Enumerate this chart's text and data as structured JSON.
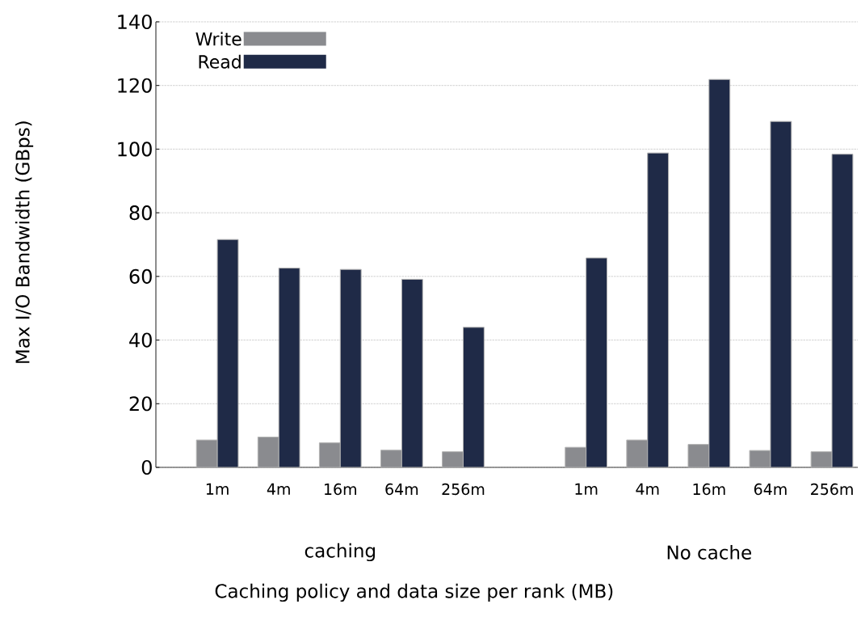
{
  "chart_data": {
    "type": "bar",
    "xlabel": "Caching policy and data size per rank (MB)",
    "ylabel": "Max I/O Bandwidth (GBps)",
    "categories": [
      "1m",
      "4m",
      "16m",
      "64m",
      "256m",
      null,
      "1m",
      "4m",
      "16m",
      "64m",
      "256m"
    ],
    "series": [
      {
        "name": "Write",
        "color": "#8a8b8f",
        "values": [
          8.6,
          9.5,
          7.7,
          5.4,
          4.9,
          null,
          6.3,
          8.6,
          7.2,
          5.3,
          4.9
        ]
      },
      {
        "name": "Read",
        "color": "#1f2a47",
        "values": [
          71.6,
          62.6,
          62.2,
          59.1,
          44.0,
          null,
          65.8,
          98.8,
          121.9,
          108.7,
          98.4
        ]
      }
    ],
    "annotations": [
      "caching",
      "No cache"
    ],
    "ylim": [
      0,
      140
    ],
    "yticks": [
      0,
      20,
      40,
      60,
      80,
      100,
      120,
      140
    ],
    "grid": "y",
    "legend": "top left"
  }
}
